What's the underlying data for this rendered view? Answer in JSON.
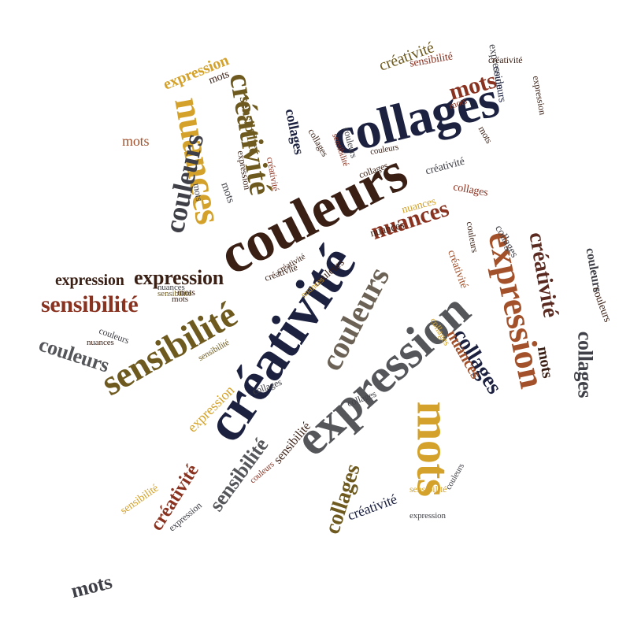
{
  "title": "",
  "palette": {
    "navy": "#1c2140",
    "brown": "#3a1f14",
    "rust": "#8a3220",
    "terracotta": "#a2512b",
    "gold": "#d4a22a",
    "olive": "#6e5a1e",
    "gray": "#55565a",
    "slate": "#3f4047",
    "wine": "#5a2a20"
  },
  "words": {
    "w01": "collages",
    "w02": "couleurs",
    "w03": "créativité",
    "w04": "expression",
    "w05": "sensibilité",
    "w06": "expression",
    "w07": "nuances",
    "w08": "créativité",
    "w09": "couleurs",
    "w10": "mots",
    "w11": "couleurs",
    "w12": "nuances",
    "w13": "expression",
    "w14": "sensibilité",
    "w15": "expression",
    "w16": "collages",
    "w17": "créativité",
    "w18": "collages",
    "w19": "expression",
    "w20": "mots",
    "w21": "couleurs",
    "w22": "sensibilité",
    "w23": "créativité",
    "w24": "collages",
    "w25": "collages",
    "w26": "mots",
    "w27": "nuances",
    "w28": "sensibilité",
    "w29": "mots",
    "w30": "couleurs",
    "w31": "créativité",
    "w32": "expression",
    "w33": "couleurs",
    "w34": "sensibilité",
    "w35": "mots",
    "w36": "collages",
    "w37": "créativité",
    "w38": "nuances",
    "w39": "créativité",
    "w40": "couleurs",
    "w41": "mots",
    "w42": "expression",
    "w43": "sensibilité",
    "w44": "couleurs",
    "w45": "collages",
    "w46": "créativité",
    "w47": "mots",
    "w48": "couleurs",
    "w49": "sensibilité",
    "w50": "collages",
    "w51": "nuances",
    "w52": "créativité",
    "w53": "mots",
    "w54": "collages",
    "w55": "couleurs",
    "w56": "expression",
    "w57": "nuances",
    "w58": "sensibilité",
    "w59": "collages",
    "w60": "créativité",
    "w61": "couleurs",
    "w62": "mots",
    "w63": "expression",
    "w64": "sensibilité",
    "w65": "couleurs",
    "w66": "mots",
    "w67": "collages",
    "w68": "créativité",
    "w69": "nuances",
    "w70": "expression",
    "w71": "couleurs",
    "w72": "mots",
    "w73": "sensibilité",
    "w74": "créativité",
    "w75": "collages",
    "w76": "mots",
    "w77": "expression",
    "w78": "couleurs",
    "w79": "nuances",
    "w80": "sensibilité"
  }
}
